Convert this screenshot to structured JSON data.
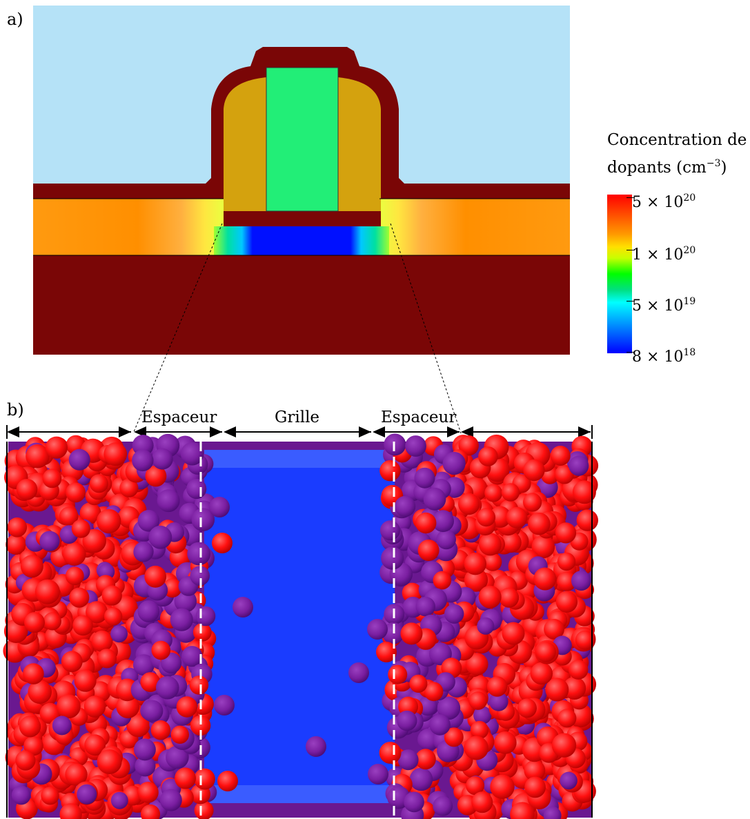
{
  "panels": {
    "a": "a)",
    "b": "b)"
  },
  "colorbar": {
    "title_line1": "Concentration de",
    "title_line2": "dopants (cm",
    "title_exp": "−3",
    "title_close": ")",
    "ticks": [
      {
        "mantissa": "5 × 10",
        "exp": "20"
      },
      {
        "mantissa": "1 × 10",
        "exp": "20"
      },
      {
        "mantissa": "5 × 10",
        "exp": "19"
      },
      {
        "mantissa": "8 × 10",
        "exp": "18"
      }
    ]
  },
  "dimensions": {
    "spacer_left": "Espaceur",
    "gate": "Grille",
    "spacer_right": "Espaceur"
  },
  "colors": {
    "sky": "#b5e2f7",
    "oxide": "#7a0606",
    "spacer": "#d4a20e",
    "gate": "#22ee77",
    "channel": "#0010ff",
    "dopant_red": "#ff1010",
    "dopant_purple": "#7a1ea0"
  }
}
